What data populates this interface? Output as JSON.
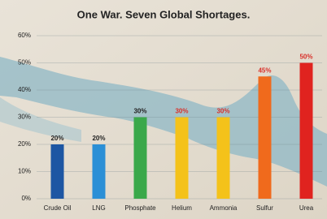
{
  "chart_data": {
    "type": "bar",
    "title": "One War. Seven Global Shortages.",
    "categories": [
      "Crude Oil",
      "LNG",
      "Phosphate",
      "Helium",
      "Ammonia",
      "Sulfur",
      "Urea"
    ],
    "values": [
      20,
      20,
      30,
      30,
      30,
      45,
      50
    ],
    "value_labels": [
      "20%",
      "20%",
      "30%",
      "30%",
      "30%",
      "45%",
      "50%"
    ],
    "colors": [
      "#1d56a3",
      "#2b8fd6",
      "#3aa84a",
      "#f4c21a",
      "#f4c21a",
      "#f06a1c",
      "#e0231f"
    ],
    "value_label_colors": [
      "#222222",
      "#222222",
      "#222222",
      "#d9302a",
      "#d9302a",
      "#d9302a",
      "#d9302a"
    ],
    "ylim": [
      0,
      60
    ],
    "yticks": [
      {
        "value": 0,
        "label": "0%"
      },
      {
        "value": 10,
        "label": "10%"
      },
      {
        "value": 20,
        "label": "20%"
      },
      {
        "value": 30,
        "label": "30%"
      },
      {
        "value": 40,
        "label": "40%"
      },
      {
        "value": 50,
        "label": "50%"
      },
      {
        "value": 60,
        "label": "60%"
      }
    ],
    "grid": true
  }
}
